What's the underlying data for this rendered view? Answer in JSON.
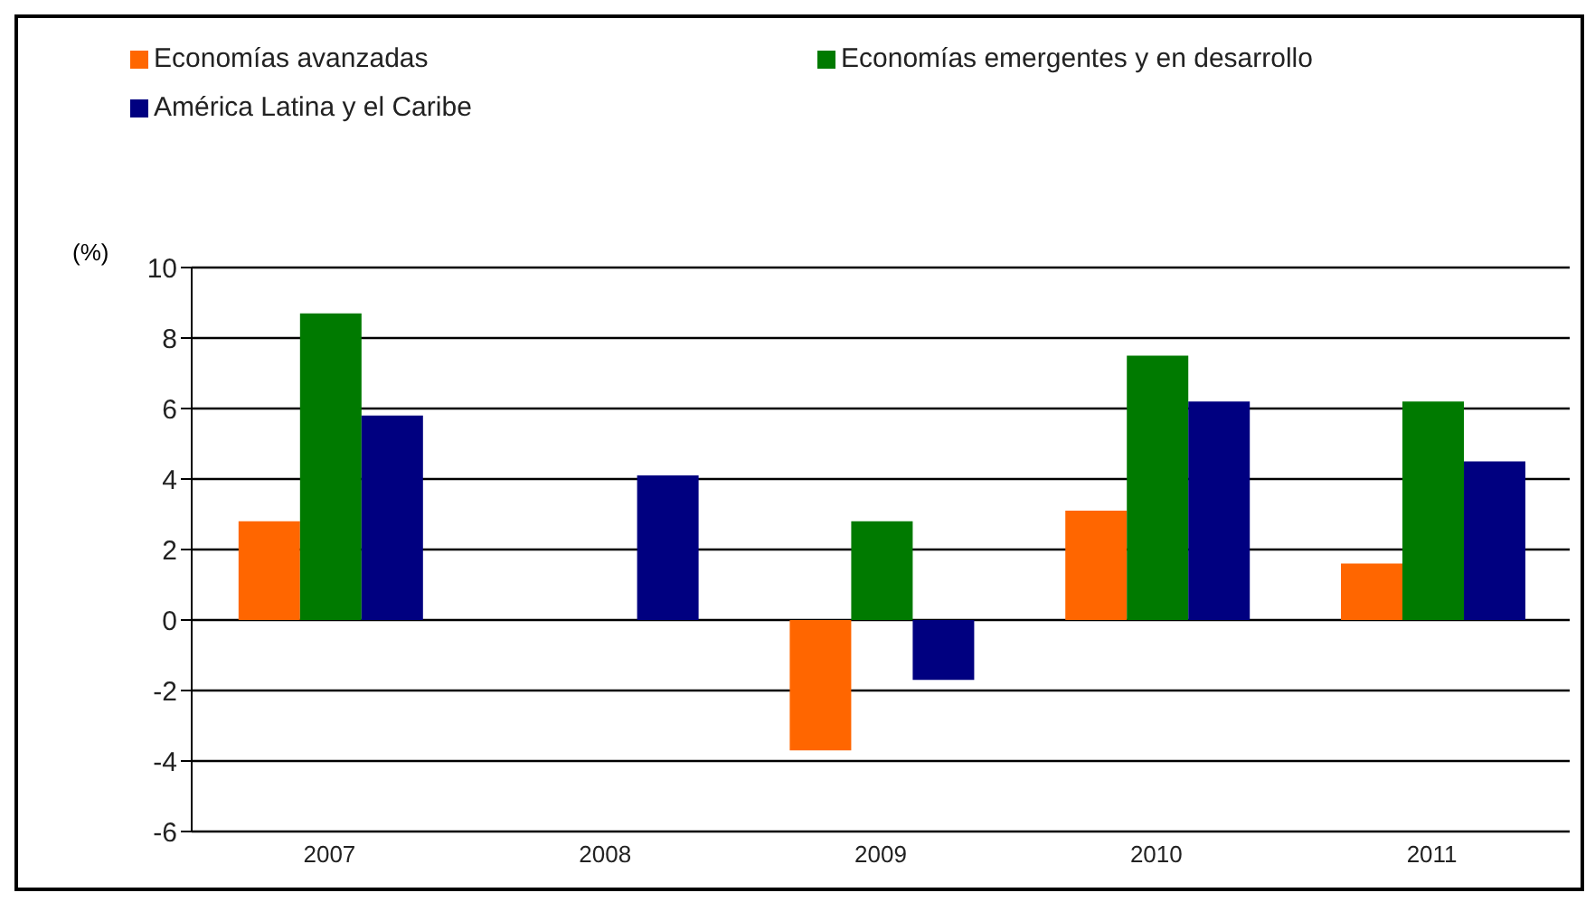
{
  "chart_data": {
    "type": "bar",
    "ylabel": "(%)",
    "categories": [
      "2007",
      "2008",
      "2009",
      "2010",
      "2011"
    ],
    "series": [
      {
        "name": "Economías avanzadas",
        "color": "#ff6600",
        "values": [
          2.8,
          null,
          -3.7,
          3.1,
          1.6
        ]
      },
      {
        "name": "Economías emergentes y en desarrollo",
        "color": "#007a00",
        "values": [
          8.7,
          null,
          2.8,
          7.5,
          6.2
        ]
      },
      {
        "name": "América Latina y el Caribe",
        "color": "#000080",
        "values": [
          5.8,
          4.1,
          -1.7,
          6.2,
          4.5
        ]
      }
    ],
    "ylim": [
      -6,
      10
    ],
    "yticks": [
      -6,
      -4,
      -2,
      0,
      2,
      4,
      6,
      8,
      10
    ],
    "grid": "y",
    "legend": "top"
  }
}
